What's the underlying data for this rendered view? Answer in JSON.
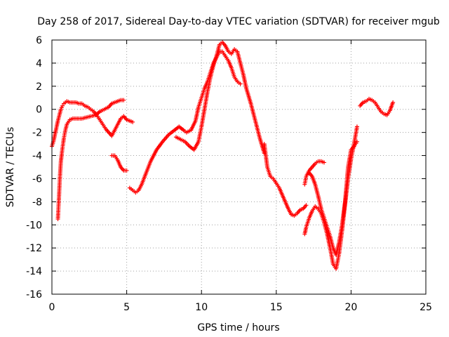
{
  "chart_data": {
    "type": "scatter",
    "title": "Day 258 of 2017, Sidereal Day-to-day VTEC variation (SDTVAR) for receiver mgub",
    "xlabel": "GPS time / hours",
    "ylabel": "SDTVAR / TECUs",
    "xlim": [
      0,
      25
    ],
    "ylim": [
      -16,
      6
    ],
    "x_ticks": [
      "0",
      "5",
      "10",
      "15",
      "20",
      "25"
    ],
    "y_ticks": [
      "-16",
      "-14",
      "-12",
      "-10",
      "-8",
      "-6",
      "-4",
      "-2",
      "0",
      "2",
      "4",
      "6"
    ],
    "grid": true,
    "marker": "+",
    "color": "#ff0000",
    "series": [
      {
        "x": [
          0.0,
          0.1,
          0.2,
          0.3,
          0.4,
          0.5,
          0.6,
          0.7,
          0.8,
          0.9,
          1.0,
          1.2,
          1.4,
          1.6,
          1.8,
          2.0,
          2.2,
          2.4,
          2.6,
          2.8,
          3.0,
          3.2,
          3.4,
          3.6,
          3.8,
          4.0,
          4.2,
          4.4,
          4.6,
          4.8
        ],
        "y": [
          -3.2,
          -2.8,
          -2.2,
          -1.6,
          -1.0,
          -0.5,
          0.0,
          0.3,
          0.5,
          0.6,
          0.7,
          0.6,
          0.6,
          0.6,
          0.5,
          0.5,
          0.3,
          0.2,
          0.0,
          -0.2,
          -0.5,
          -0.9,
          -1.3,
          -1.7,
          -2.0,
          -2.3,
          -1.8,
          -1.3,
          -0.8,
          -0.6
        ]
      },
      {
        "x": [
          0.4,
          0.45,
          0.5,
          0.55,
          0.6,
          0.7,
          0.8,
          0.9,
          1.0,
          1.2,
          1.4,
          1.6,
          1.8,
          2.0,
          2.3,
          2.6,
          2.9,
          3.2,
          3.5,
          3.8,
          4.0,
          4.2,
          4.4,
          4.6,
          4.8
        ],
        "y": [
          -9.5,
          -8.2,
          -6.8,
          -5.5,
          -4.5,
          -3.4,
          -2.5,
          -1.8,
          -1.3,
          -0.9,
          -0.8,
          -0.8,
          -0.8,
          -0.8,
          -0.7,
          -0.6,
          -0.5,
          -0.2,
          0.0,
          0.2,
          0.5,
          0.6,
          0.7,
          0.8,
          0.8
        ]
      },
      {
        "x": [
          4.0,
          4.2,
          4.4,
          4.6,
          4.8,
          5.0
        ],
        "y": [
          -4.0,
          -4.0,
          -4.4,
          -5.0,
          -5.3,
          -5.3
        ]
      },
      {
        "x": [
          4.8,
          5.0,
          5.2,
          5.4
        ],
        "y": [
          -0.6,
          -0.9,
          -1.0,
          -1.1
        ]
      },
      {
        "x": [
          5.2,
          5.4,
          5.6,
          5.8,
          6.0,
          6.3,
          6.6,
          7.0,
          7.4,
          7.8,
          8.2,
          8.5,
          8.8,
          9.0,
          9.3,
          9.6,
          9.8,
          10.0,
          10.2,
          10.4,
          10.6,
          10.8,
          11.0,
          11.2,
          11.4,
          11.6,
          11.8,
          12.0,
          12.2,
          12.4,
          12.6
        ],
        "y": [
          -6.8,
          -7.0,
          -7.2,
          -7.0,
          -6.5,
          -5.5,
          -4.5,
          -3.5,
          -2.8,
          -2.2,
          -1.8,
          -1.5,
          -1.8,
          -2.0,
          -1.8,
          -1.0,
          0.2,
          1.0,
          1.8,
          2.4,
          3.2,
          4.0,
          4.5,
          5.0,
          5.0,
          4.6,
          4.2,
          3.6,
          2.8,
          2.4,
          2.2
        ]
      },
      {
        "x": [
          8.3,
          8.6,
          8.9,
          9.2,
          9.5,
          9.8,
          10.0,
          10.2,
          10.4,
          10.6,
          10.8,
          11.0,
          11.2,
          11.4,
          11.6,
          11.8,
          12.0,
          12.2,
          12.4,
          12.6,
          12.8,
          13.0,
          13.3,
          13.6,
          13.9,
          14.2
        ],
        "y": [
          -2.4,
          -2.6,
          -2.8,
          -3.2,
          -3.5,
          -2.8,
          -1.5,
          0.0,
          1.5,
          2.8,
          3.8,
          4.6,
          5.6,
          5.8,
          5.5,
          5.0,
          4.8,
          5.2,
          5.0,
          4.0,
          3.0,
          1.8,
          0.5,
          -1.0,
          -2.5,
          -3.8
        ]
      },
      {
        "x": [
          14.2,
          14.4,
          14.6,
          14.8,
          15.0,
          15.2,
          15.4,
          15.6,
          15.8,
          16.0,
          16.2,
          16.4,
          16.6,
          16.8,
          17.0
        ],
        "y": [
          -3.0,
          -5.0,
          -5.8,
          -6.0,
          -6.4,
          -6.8,
          -7.4,
          -8.0,
          -8.6,
          -9.1,
          -9.2,
          -9.0,
          -8.7,
          -8.6,
          -8.3
        ]
      },
      {
        "x": [
          16.9,
          17.0,
          17.2,
          17.4,
          17.6,
          17.8,
          18.0,
          18.2
        ],
        "y": [
          -6.5,
          -5.8,
          -5.3,
          -5.0,
          -4.7,
          -4.5,
          -4.5,
          -4.6
        ]
      },
      {
        "x": [
          16.9,
          17.0,
          17.2,
          17.4,
          17.6,
          17.8,
          18.0,
          18.2,
          18.4,
          18.6,
          18.8,
          19.0,
          19.2,
          19.4,
          19.6,
          19.8,
          20.0,
          20.2,
          20.4
        ],
        "y": [
          -10.8,
          -10.2,
          -9.4,
          -8.8,
          -8.4,
          -8.6,
          -9.0,
          -9.8,
          -10.8,
          -12.0,
          -13.4,
          -13.8,
          -12.5,
          -10.5,
          -8.2,
          -6.0,
          -4.3,
          -3.0,
          -1.5
        ]
      },
      {
        "x": [
          17.2,
          17.4,
          17.6,
          17.8,
          18.0,
          18.2,
          18.4,
          18.6,
          18.8,
          19.0,
          19.2,
          19.4,
          19.6,
          19.8,
          20.0,
          20.2,
          20.4
        ],
        "y": [
          -5.5,
          -5.8,
          -6.5,
          -7.5,
          -8.6,
          -9.4,
          -10.2,
          -11.0,
          -12.0,
          -12.6,
          -11.5,
          -10.0,
          -8.0,
          -5.0,
          -3.5,
          -3.2,
          -2.8
        ]
      },
      {
        "x": [
          20.6,
          20.8,
          21.0,
          21.2,
          21.4,
          21.6,
          21.8,
          22.0,
          22.2,
          22.4,
          22.6,
          22.8
        ],
        "y": [
          0.3,
          0.6,
          0.7,
          0.9,
          0.8,
          0.6,
          0.2,
          -0.2,
          -0.4,
          -0.5,
          -0.1,
          0.6
        ]
      }
    ]
  }
}
